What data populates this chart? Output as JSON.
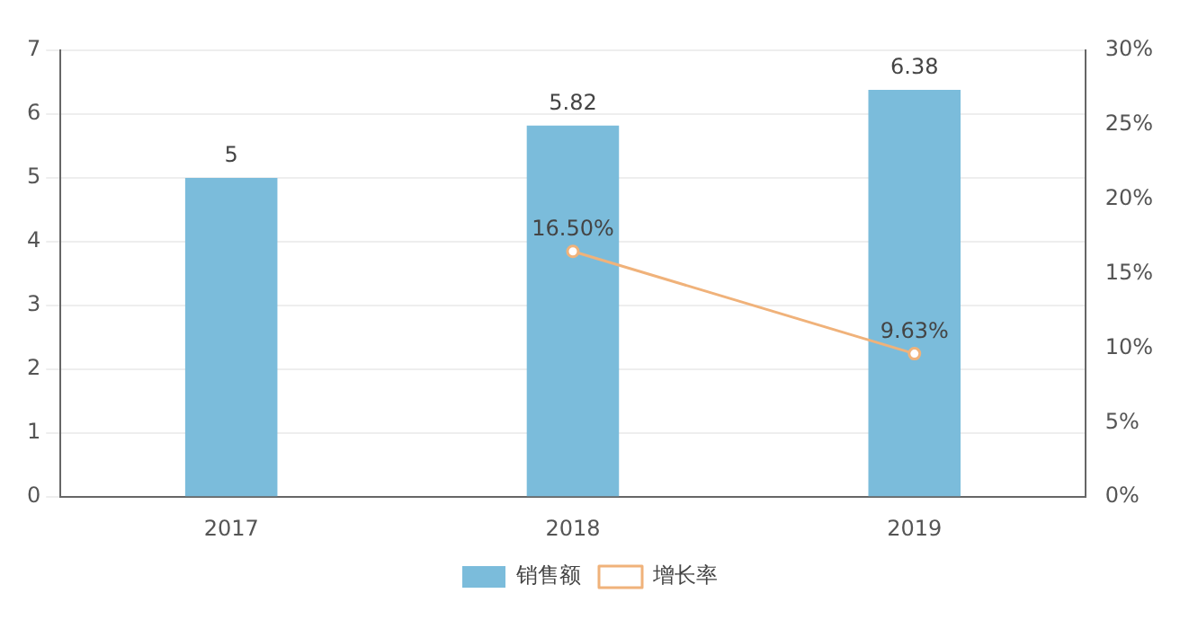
{
  "chart_data": {
    "type": "bar",
    "categories": [
      "2017",
      "2018",
      "2019"
    ],
    "series": [
      {
        "name": "销售额",
        "color": "#7bbcdb",
        "values": [
          5,
          5.82,
          6.38
        ],
        "value_labels": [
          "5",
          "5.82",
          "6.38"
        ]
      },
      {
        "name": "增长率",
        "type": "line",
        "axis": "y2",
        "color": "#f0b27a",
        "values": [
          null,
          16.5,
          9.63
        ],
        "value_labels": [
          null,
          "16.50%",
          "9.63%"
        ],
        "marker": "circle"
      }
    ],
    "ylim": [
      0,
      7
    ],
    "yticks": [
      0,
      1,
      2,
      3,
      4,
      5,
      6,
      7
    ],
    "y2lim": [
      0,
      30
    ],
    "y2ticks": [
      {
        "value": 0,
        "label": "0%"
      },
      {
        "value": 5,
        "label": "5%"
      },
      {
        "value": 10,
        "label": "10%"
      },
      {
        "value": 15,
        "label": "15%"
      },
      {
        "value": 20,
        "label": "20%"
      },
      {
        "value": 25,
        "label": "25%"
      },
      {
        "value": 30,
        "label": "30%"
      }
    ],
    "grid": "y",
    "legend": "bottom"
  }
}
